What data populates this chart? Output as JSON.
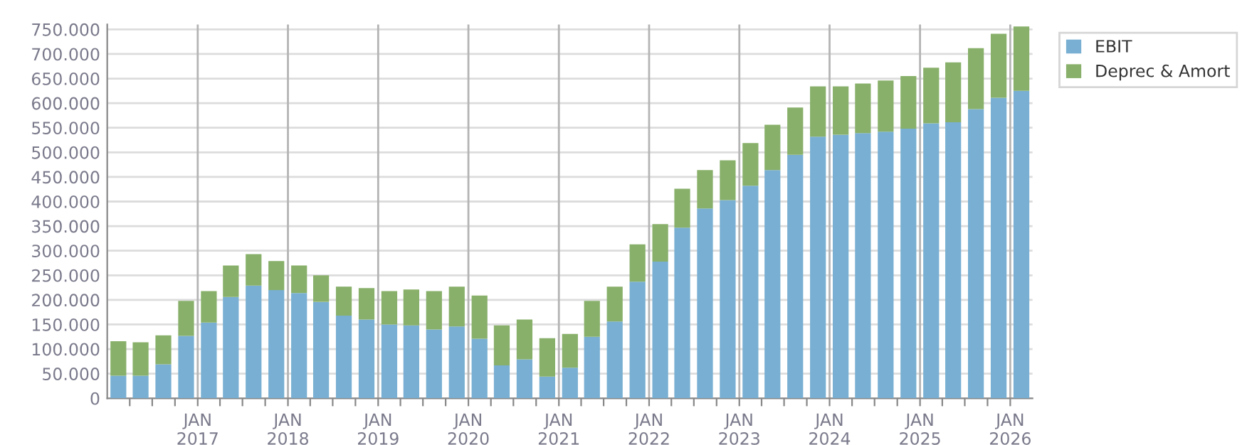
{
  "chart_data": {
    "type": "bar",
    "stacked": true,
    "x": [
      "2016-02-15",
      "2016-05-15",
      "2016-08-15",
      "2016-11-15",
      "2017-02-15",
      "2017-05-15",
      "2017-08-15",
      "2017-11-15",
      "2018-02-15",
      "2018-05-15",
      "2018-08-15",
      "2018-11-15",
      "2019-02-15",
      "2019-05-15",
      "2019-08-15",
      "2019-11-15",
      "2020-02-15",
      "2020-05-15",
      "2020-08-15",
      "2020-11-15",
      "2021-02-15",
      "2021-05-15",
      "2021-08-15",
      "2021-11-15",
      "2022-02-15",
      "2022-05-15",
      "2022-08-15",
      "2022-11-15",
      "2023-02-15",
      "2023-05-15",
      "2023-08-15",
      "2023-11-15",
      "2024-02-15",
      "2024-05-15",
      "2024-08-15",
      "2024-11-15",
      "2025-02-15",
      "2025-05-15",
      "2025-08-15",
      "2025-11-15",
      "2026-02-15"
    ],
    "series": [
      {
        "name": "EBIT",
        "color": "#78afd2",
        "values": [
          46000,
          46000,
          69000,
          127000,
          154000,
          206000,
          229000,
          220000,
          214000,
          196000,
          168000,
          160000,
          150000,
          148000,
          140000,
          146000,
          121000,
          67000,
          79000,
          44000,
          62000,
          125000,
          156000,
          237000,
          278000,
          347000,
          386000,
          403000,
          432000,
          464000,
          495000,
          532000,
          536000,
          539000,
          542000,
          548000,
          559000,
          561000,
          588000,
          611000,
          625000
        ]
      },
      {
        "name": "Deprec & Amort",
        "color": "#88b06a",
        "values": [
          70000,
          68000,
          59000,
          71000,
          64000,
          64000,
          64000,
          59000,
          56000,
          54000,
          59000,
          64000,
          68000,
          73000,
          78000,
          81000,
          88000,
          81000,
          81000,
          78000,
          69000,
          73000,
          71000,
          76000,
          76000,
          79000,
          78000,
          81000,
          87000,
          92000,
          96000,
          102000,
          98000,
          101000,
          104000,
          107000,
          113000,
          122000,
          124000,
          130000,
          131000
        ]
      }
    ],
    "xlim": [
      "2016-01-01",
      "2026-04-01"
    ],
    "xticks": [
      {
        "value": "2016-04-01",
        "label": null
      },
      {
        "value": "2016-07-01",
        "label": null
      },
      {
        "value": "2016-10-01",
        "label": null
      },
      {
        "value": "2017-01-01",
        "label": "JAN\n2017"
      },
      {
        "value": "2017-04-01",
        "label": null
      },
      {
        "value": "2017-07-01",
        "label": null
      },
      {
        "value": "2017-10-01",
        "label": null
      },
      {
        "value": "2018-01-01",
        "label": "JAN\n2018"
      },
      {
        "value": "2018-04-01",
        "label": null
      },
      {
        "value": "2018-07-01",
        "label": null
      },
      {
        "value": "2018-10-01",
        "label": null
      },
      {
        "value": "2019-01-01",
        "label": "JAN\n2019"
      },
      {
        "value": "2019-04-01",
        "label": null
      },
      {
        "value": "2019-07-01",
        "label": null
      },
      {
        "value": "2019-10-01",
        "label": null
      },
      {
        "value": "2020-01-01",
        "label": "JAN\n2020"
      },
      {
        "value": "2020-04-01",
        "label": null
      },
      {
        "value": "2020-07-01",
        "label": null
      },
      {
        "value": "2020-10-01",
        "label": null
      },
      {
        "value": "2021-01-01",
        "label": "JAN\n2021"
      },
      {
        "value": "2021-04-01",
        "label": null
      },
      {
        "value": "2021-07-01",
        "label": null
      },
      {
        "value": "2021-10-01",
        "label": null
      },
      {
        "value": "2022-01-01",
        "label": "JAN\n2022"
      },
      {
        "value": "2022-04-01",
        "label": null
      },
      {
        "value": "2022-07-01",
        "label": null
      },
      {
        "value": "2022-10-01",
        "label": null
      },
      {
        "value": "2023-01-01",
        "label": "JAN\n2023"
      },
      {
        "value": "2023-04-01",
        "label": null
      },
      {
        "value": "2023-07-01",
        "label": null
      },
      {
        "value": "2023-10-01",
        "label": null
      },
      {
        "value": "2024-01-01",
        "label": "JAN\n2024"
      },
      {
        "value": "2024-04-01",
        "label": null
      },
      {
        "value": "2024-07-01",
        "label": null
      },
      {
        "value": "2024-10-01",
        "label": null
      },
      {
        "value": "2025-01-01",
        "label": "JAN\n2025"
      },
      {
        "value": "2025-04-01",
        "label": null
      },
      {
        "value": "2025-07-01",
        "label": null
      },
      {
        "value": "2025-10-01",
        "label": null
      },
      {
        "value": "2026-01-01",
        "label": "JAN\n2026"
      }
    ],
    "ylim": [
      0,
      760000
    ],
    "yticks": [
      {
        "value": 0,
        "label": "0"
      },
      {
        "value": 50000,
        "label": "50.000"
      },
      {
        "value": 100000,
        "label": "100.000"
      },
      {
        "value": 150000,
        "label": "150.000"
      },
      {
        "value": 200000,
        "label": "200.000"
      },
      {
        "value": 250000,
        "label": "250.000"
      },
      {
        "value": 300000,
        "label": "300.000"
      },
      {
        "value": 350000,
        "label": "350.000"
      },
      {
        "value": 400000,
        "label": "400.000"
      },
      {
        "value": 450000,
        "label": "450.000"
      },
      {
        "value": 500000,
        "label": "500.000"
      },
      {
        "value": 550000,
        "label": "550.000"
      },
      {
        "value": 600000,
        "label": "600.000"
      },
      {
        "value": 650000,
        "label": "650.000"
      },
      {
        "value": 700000,
        "label": "700.000"
      },
      {
        "value": 750000,
        "label": "750.000"
      }
    ],
    "grid": true,
    "legend": "top right"
  }
}
